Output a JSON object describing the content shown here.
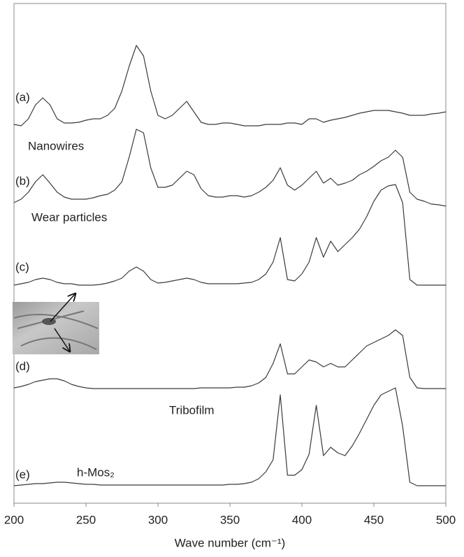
{
  "chart_data": {
    "type": "line",
    "xlabel": "Wave number (cm⁻¹)",
    "x": [
      200,
      205,
      210,
      215,
      220,
      225,
      230,
      235,
      240,
      245,
      250,
      255,
      260,
      265,
      270,
      275,
      280,
      285,
      290,
      295,
      300,
      305,
      310,
      315,
      320,
      325,
      330,
      335,
      340,
      345,
      350,
      355,
      360,
      365,
      370,
      375,
      380,
      385,
      390,
      395,
      400,
      405,
      410,
      415,
      420,
      425,
      430,
      435,
      440,
      445,
      450,
      455,
      460,
      465,
      470,
      475,
      480,
      485,
      490,
      495,
      500
    ],
    "xlim": [
      200,
      500
    ],
    "xticks": [
      200,
      250,
      300,
      350,
      400,
      450,
      500
    ],
    "ylim": [
      0,
      715
    ],
    "series": [
      {
        "label": "(a)",
        "caption": "Nanowires",
        "color": "#3a3a3a",
        "values": [
          542,
          540,
          550,
          570,
          580,
          570,
          550,
          544,
          544,
          545,
          548,
          550,
          550,
          555,
          565,
          590,
          625,
          655,
          640,
          590,
          555,
          550,
          555,
          565,
          575,
          560,
          545,
          542,
          542,
          544,
          544,
          542,
          540,
          540,
          540,
          542,
          542,
          542,
          544,
          544,
          542,
          550,
          550,
          545,
          548,
          550,
          552,
          555,
          558,
          560,
          562,
          562,
          562,
          560,
          558,
          555,
          555,
          555,
          557,
          558,
          560
        ]
      },
      {
        "label": "(b)",
        "caption": "Wear particles",
        "color": "#3a3a3a",
        "values": [
          430,
          435,
          445,
          460,
          470,
          458,
          445,
          438,
          435,
          435,
          435,
          437,
          440,
          442,
          448,
          460,
          495,
          535,
          530,
          480,
          452,
          452,
          455,
          465,
          475,
          470,
          450,
          440,
          438,
          438,
          440,
          440,
          438,
          440,
          445,
          452,
          462,
          480,
          455,
          448,
          455,
          465,
          475,
          458,
          465,
          455,
          458,
          462,
          470,
          475,
          482,
          490,
          495,
          505,
          495,
          445,
          435,
          432,
          428,
          427,
          425
        ]
      },
      {
        "label": "(c)",
        "color": "#3a3a3a",
        "values": [
          312,
          314,
          316,
          320,
          322,
          320,
          316,
          314,
          314,
          312,
          312,
          312,
          313,
          315,
          318,
          322,
          332,
          338,
          332,
          320,
          315,
          316,
          318,
          320,
          322,
          320,
          316,
          314,
          314,
          314,
          314,
          314,
          315,
          316,
          320,
          328,
          345,
          380,
          320,
          318,
          328,
          345,
          380,
          352,
          375,
          360,
          370,
          380,
          392,
          410,
          432,
          448,
          454,
          456,
          430,
          320,
          312,
          312,
          312,
          312,
          312
        ]
      },
      {
        "label": "(d)",
        "caption": "Tribofilm",
        "color": "#3a3a3a",
        "values": [
          165,
          167,
          170,
          174,
          176,
          178,
          178,
          175,
          170,
          167,
          165,
          164,
          164,
          164,
          164,
          164,
          164,
          164,
          164,
          164,
          164,
          164,
          164,
          164,
          164,
          164,
          165,
          165,
          165,
          165,
          165,
          166,
          166,
          168,
          172,
          180,
          200,
          228,
          185,
          185,
          195,
          205,
          202,
          195,
          200,
          195,
          195,
          205,
          215,
          225,
          230,
          235,
          240,
          248,
          240,
          180,
          165,
          164,
          164,
          164,
          164
        ]
      },
      {
        "label": "(e)",
        "caption": "h-Mos₂",
        "color": "#3a3a3a",
        "values": [
          25,
          26,
          27,
          28,
          28,
          29,
          30,
          30,
          29,
          28,
          27,
          27,
          26,
          26,
          26,
          26,
          26,
          26,
          26,
          26,
          26,
          26,
          26,
          26,
          26,
          26,
          26,
          26,
          26,
          26,
          27,
          27,
          28,
          30,
          35,
          45,
          62,
          155,
          40,
          40,
          48,
          70,
          140,
          68,
          80,
          72,
          68,
          82,
          100,
          120,
          140,
          155,
          160,
          165,
          110,
          30,
          25,
          25,
          25,
          25,
          25
        ]
      }
    ]
  }
}
